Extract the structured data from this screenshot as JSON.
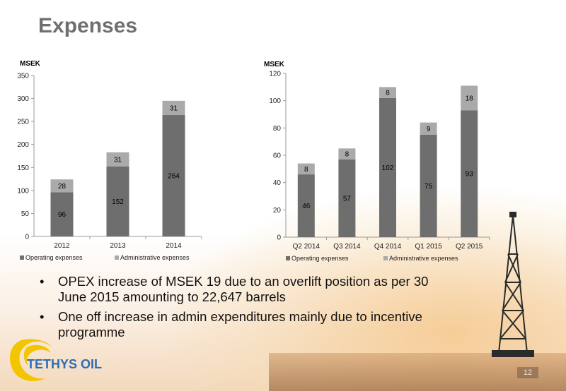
{
  "slide": {
    "title": "Expenses",
    "page_number": "12",
    "logo_text": "TETHYS OIL",
    "bullets": [
      "OPEX increase of MSEK 19 due to an overlift position as per 30 June 2015 amounting to 22,647 barrels",
      "One off increase in admin expenditures mainly due to incentive programme"
    ]
  },
  "colors": {
    "operating": "#6e6e6e",
    "administrative": "#aaaaaa",
    "title": "#6f6f6f",
    "logo_blue": "#2a6fb5",
    "logo_yellow": "#f3c500"
  },
  "chart_data": [
    {
      "type": "bar",
      "stacked": true,
      "title": "",
      "ylabel": "MSEK",
      "ylim": [
        0,
        350
      ],
      "yticks": [
        0,
        50,
        100,
        150,
        200,
        250,
        300,
        350
      ],
      "categories": [
        "2012",
        "2013",
        "2014"
      ],
      "series": [
        {
          "name": "Operating expenses",
          "values": [
            96,
            152,
            264
          ]
        },
        {
          "name": "Administrative expenses",
          "values": [
            28,
            31,
            31
          ]
        }
      ],
      "legend_position": "bottom",
      "grid": false
    },
    {
      "type": "bar",
      "stacked": true,
      "title": "",
      "ylabel": "MSEK",
      "ylim": [
        0,
        120
      ],
      "yticks": [
        0,
        20,
        40,
        60,
        80,
        100,
        120
      ],
      "categories": [
        "Q2 2014",
        "Q3 2014",
        "Q4 2014",
        "Q1 2015",
        "Q2 2015"
      ],
      "series": [
        {
          "name": "Operating expenses",
          "values": [
            46,
            57,
            102,
            75,
            93
          ]
        },
        {
          "name": "Administrative expenses",
          "values": [
            8,
            8,
            8,
            9,
            18
          ]
        }
      ],
      "legend_position": "bottom",
      "grid": false
    }
  ]
}
